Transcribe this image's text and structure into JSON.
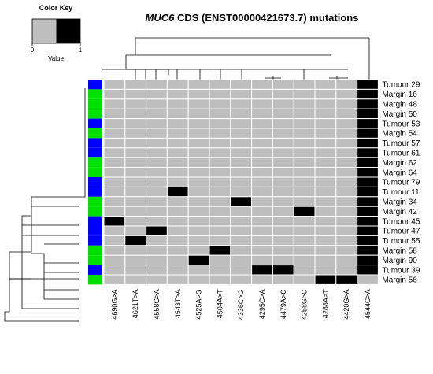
{
  "chart_data": {
    "type": "heatmap",
    "title_gene": "MUC6",
    "title_rest": " CDS (ENST00000421673.7) mutations",
    "color_key": {
      "title": "Color Key",
      "xlabel": "Value",
      "tick_min": "0",
      "tick_max": "1",
      "low_color": "#bebebe",
      "high_color": "#000000"
    },
    "columns": [
      "4690G>A",
      "4621T>A",
      "4558G>A",
      "4543T>A",
      "4525A>G",
      "4504A>T",
      "4336C>G",
      "4295C>A",
      "4479A>C",
      "4258G>C",
      "4288A>T",
      "4420G>A",
      "4544C>A"
    ],
    "rows": [
      "Tumour 29",
      "Margin 16",
      "Margin 48",
      "Margin 50",
      "Tumour 53",
      "Margin 54",
      "Tumour 57",
      "Tumour 61",
      "Margin 62",
      "Margin 64",
      "Tumour 79",
      "Tumour 11",
      "Margin 34",
      "Margin 42",
      "Tumour 45",
      "Tumour 47",
      "Tumour 55",
      "Margin 58",
      "Margin 90",
      "Tumour 39",
      "Margin 56"
    ],
    "row_groups": [
      "Tumour",
      "Margin",
      "Margin",
      "Margin",
      "Tumour",
      "Margin",
      "Tumour",
      "Tumour",
      "Margin",
      "Margin",
      "Tumour",
      "Tumour",
      "Margin",
      "Margin",
      "Tumour",
      "Tumour",
      "Tumour",
      "Margin",
      "Margin",
      "Tumour",
      "Margin"
    ],
    "group_colors": {
      "Tumour": "#0000ff",
      "Margin": "#00e000"
    },
    "values": [
      [
        0,
        0,
        0,
        0,
        0,
        0,
        0,
        0,
        0,
        0,
        0,
        0,
        1
      ],
      [
        0,
        0,
        0,
        0,
        0,
        0,
        0,
        0,
        0,
        0,
        0,
        0,
        1
      ],
      [
        0,
        0,
        0,
        0,
        0,
        0,
        0,
        0,
        0,
        0,
        0,
        0,
        1
      ],
      [
        0,
        0,
        0,
        0,
        0,
        0,
        0,
        0,
        0,
        0,
        0,
        0,
        1
      ],
      [
        0,
        0,
        0,
        0,
        0,
        0,
        0,
        0,
        0,
        0,
        0,
        0,
        1
      ],
      [
        0,
        0,
        0,
        0,
        0,
        0,
        0,
        0,
        0,
        0,
        0,
        0,
        1
      ],
      [
        0,
        0,
        0,
        0,
        0,
        0,
        0,
        0,
        0,
        0,
        0,
        0,
        1
      ],
      [
        0,
        0,
        0,
        0,
        0,
        0,
        0,
        0,
        0,
        0,
        0,
        0,
        1
      ],
      [
        0,
        0,
        0,
        0,
        0,
        0,
        0,
        0,
        0,
        0,
        0,
        0,
        1
      ],
      [
        0,
        0,
        0,
        0,
        0,
        0,
        0,
        0,
        0,
        0,
        0,
        0,
        1
      ],
      [
        0,
        0,
        0,
        0,
        0,
        0,
        0,
        0,
        0,
        0,
        0,
        0,
        1
      ],
      [
        0,
        0,
        0,
        1,
        0,
        0,
        0,
        0,
        0,
        0,
        0,
        0,
        1
      ],
      [
        0,
        0,
        0,
        0,
        0,
        0,
        1,
        0,
        0,
        0,
        0,
        0,
        1
      ],
      [
        0,
        0,
        0,
        0,
        0,
        0,
        0,
        0,
        0,
        1,
        0,
        0,
        1
      ],
      [
        1,
        0,
        0,
        0,
        0,
        0,
        0,
        0,
        0,
        0,
        0,
        0,
        1
      ],
      [
        0,
        0,
        1,
        0,
        0,
        0,
        0,
        0,
        0,
        0,
        0,
        0,
        1
      ],
      [
        0,
        1,
        0,
        0,
        0,
        0,
        0,
        0,
        0,
        0,
        0,
        0,
        1
      ],
      [
        0,
        0,
        0,
        0,
        0,
        1,
        0,
        0,
        0,
        0,
        0,
        0,
        1
      ],
      [
        0,
        0,
        0,
        0,
        1,
        0,
        0,
        0,
        0,
        0,
        0,
        0,
        1
      ],
      [
        0,
        0,
        0,
        0,
        0,
        0,
        0,
        1,
        1,
        0,
        0,
        0,
        1
      ],
      [
        0,
        0,
        0,
        0,
        0,
        0,
        0,
        0,
        0,
        0,
        1,
        1,
        0
      ]
    ],
    "value_range": [
      0,
      1
    ]
  }
}
